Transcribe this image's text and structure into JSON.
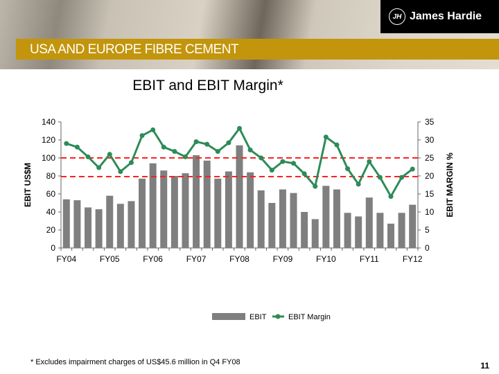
{
  "header": {
    "section": "USA AND EUROPE FIBRE CEMENT",
    "brand": "James Hardie",
    "logo_mark": "JH"
  },
  "footnote": "* Excludes impairment charges of US$45.6 million in Q4 FY08",
  "page_number": "11",
  "colors": {
    "bar": "#7f7f7f",
    "line": "#2e8b57",
    "ref": "#ff2020",
    "banner": "#c3950c"
  },
  "chart_data": {
    "type": "bar+line",
    "title": "EBIT and EBIT Margin*",
    "ylabel": "EBIT US$M",
    "y2label": "EBIT MARGIN %",
    "ylim": [
      0,
      140
    ],
    "y2lim": [
      0,
      35
    ],
    "yticks": [
      0,
      20,
      40,
      60,
      80,
      100,
      120,
      140
    ],
    "y2ticks": [
      0,
      5,
      10,
      15,
      20,
      25,
      30,
      35
    ],
    "xtick_labels": [
      {
        "index": 0,
        "label": "FY04"
      },
      {
        "index": 4,
        "label": "FY05"
      },
      {
        "index": 8,
        "label": "FY06"
      },
      {
        "index": 12,
        "label": "FY07"
      },
      {
        "index": 16,
        "label": "FY08"
      },
      {
        "index": 20,
        "label": "FY09"
      },
      {
        "index": 24,
        "label": "FY10"
      },
      {
        "index": 28,
        "label": "FY11"
      },
      {
        "index": 32,
        "label": "FY12"
      }
    ],
    "reference_lines_pct": [
      25,
      19.8
    ],
    "series": [
      {
        "name": "EBIT",
        "type": "bar",
        "axis": "left",
        "values": [
          54,
          53,
          45,
          43,
          58,
          49,
          52,
          77,
          94,
          86,
          80,
          83,
          103,
          97,
          77,
          85,
          114,
          84,
          64,
          50,
          65,
          61,
          40,
          32,
          69,
          65,
          39,
          35,
          56,
          39,
          27,
          39,
          48
        ]
      },
      {
        "name": "EBIT Margin",
        "type": "line",
        "axis": "right",
        "values": [
          29,
          28,
          25.3,
          22.3,
          26,
          21.2,
          23.7,
          31.2,
          32.8,
          28,
          26.8,
          25.3,
          29.5,
          28.8,
          26.8,
          29.2,
          33.2,
          27.2,
          25,
          21.6,
          24,
          23.5,
          20.6,
          17.1,
          30.8,
          28.6,
          22,
          17.7,
          24,
          19.6,
          14.3,
          19.6,
          21.9
        ]
      }
    ],
    "legend": "bottom"
  }
}
